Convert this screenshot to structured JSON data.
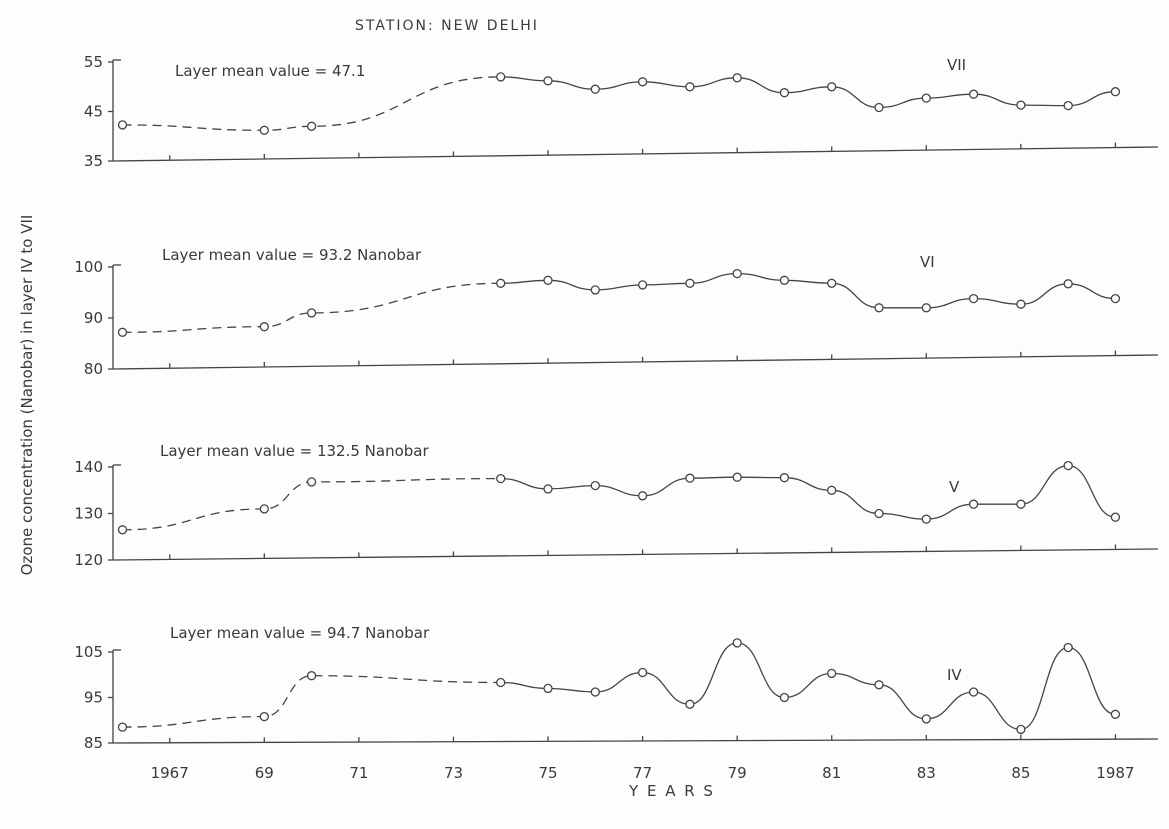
{
  "title": "STATION: NEW DELHI",
  "chart_data": {
    "type": "line",
    "title": "STATION: NEW DELHI",
    "ylabel": "Ozone concentration (Nanobar) in layer IV to VII",
    "xlabel": "Y E A R S",
    "x_ticks": [
      "1967",
      "69",
      "71",
      "73",
      "75",
      "77",
      "79",
      "81",
      "83",
      "85",
      "1987"
    ],
    "x_tick_values": [
      1967,
      1969,
      1971,
      1973,
      1975,
      1977,
      1979,
      1981,
      1983,
      1985,
      1987
    ],
    "xlim": [
      1965.8,
      1987.9
    ],
    "panels": [
      {
        "layer": "VII",
        "label": "VII",
        "annotation": "Layer mean value = 47.1",
        "ylim": [
          35,
          55
        ],
        "y_ticks": [
          "55",
          "45",
          "35"
        ],
        "y_tick_values": [
          55,
          45,
          35
        ],
        "x": [
          1966,
          1969,
          1970,
          1974,
          1975,
          1976,
          1977,
          1978,
          1979,
          1980,
          1981,
          1982,
          1983,
          1984,
          1985,
          1986,
          1987
        ],
        "values": [
          42.3,
          41.2,
          42.0,
          52.0,
          51.2,
          49.5,
          51.0,
          50.0,
          51.8,
          48.8,
          50.0,
          45.8,
          47.7,
          48.5,
          46.3,
          46.2,
          49.0
        ],
        "dashed_until": 1974
      },
      {
        "layer": "VI",
        "label": "VI",
        "annotation": "Layer mean value = 93.2 Nanobar",
        "ylim": [
          80,
          100
        ],
        "y_ticks": [
          "100",
          "90",
          "80"
        ],
        "y_tick_values": [
          100,
          90,
          80
        ],
        "x": [
          1966,
          1969,
          1970,
          1974,
          1975,
          1976,
          1977,
          1978,
          1979,
          1980,
          1981,
          1982,
          1983,
          1984,
          1985,
          1986,
          1987
        ],
        "values": [
          87.2,
          88.3,
          91.0,
          96.8,
          97.4,
          95.5,
          96.5,
          96.8,
          98.7,
          97.4,
          96.8,
          92.0,
          92.0,
          93.8,
          92.7,
          96.7,
          93.8
        ],
        "dashed_until": 1974
      },
      {
        "layer": "V",
        "label": "V",
        "annotation": "Layer mean value = 132.5 Nanobar",
        "ylim": [
          120,
          140
        ],
        "y_ticks": [
          "140",
          "130",
          "120"
        ],
        "y_tick_values": [
          140,
          130,
          120
        ],
        "x": [
          1966,
          1969,
          1970,
          1974,
          1975,
          1976,
          1977,
          1978,
          1979,
          1980,
          1981,
          1982,
          1983,
          1984,
          1985,
          1986,
          1987
        ],
        "values": [
          126.5,
          131.0,
          136.8,
          137.5,
          135.3,
          136.0,
          133.8,
          137.6,
          137.8,
          137.7,
          135.0,
          130.0,
          128.8,
          132.0,
          132.0,
          140.3,
          129.2
        ],
        "dashed_until": 1974
      },
      {
        "layer": "IV",
        "label": "IV",
        "annotation": "Layer mean value = 94.7 Nanobar",
        "ylim": [
          85,
          105
        ],
        "y_ticks": [
          "105",
          "95",
          "85"
        ],
        "y_tick_values": [
          105,
          95,
          85
        ],
        "x": [
          1966,
          1969,
          1970,
          1974,
          1975,
          1976,
          1977,
          1978,
          1979,
          1980,
          1981,
          1982,
          1983,
          1984,
          1985,
          1986,
          1987
        ],
        "values": [
          88.5,
          90.8,
          99.8,
          98.3,
          97.0,
          96.2,
          100.5,
          93.5,
          107.0,
          95.0,
          100.3,
          97.8,
          90.3,
          96.2,
          88.0,
          106.0,
          91.3
        ],
        "dashed_until": 1974
      }
    ]
  }
}
